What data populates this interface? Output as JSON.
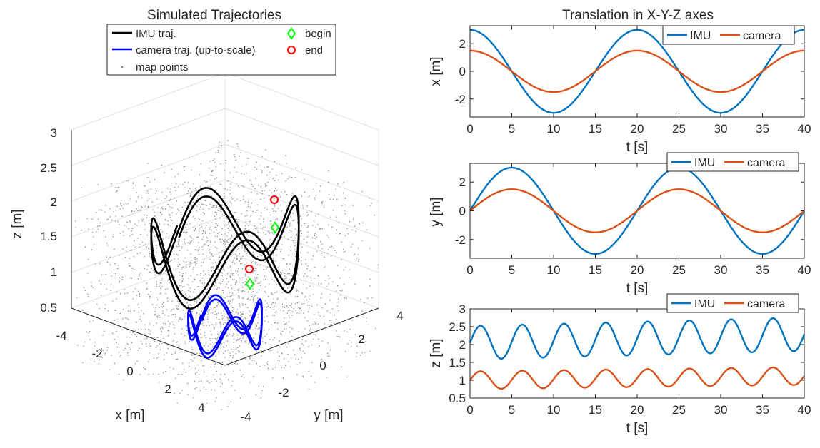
{
  "chart_data": [
    {
      "type": "scatter3d",
      "title": "Simulated Trajectories",
      "xlabel": "x [m]",
      "ylabel": "y [m]",
      "zlabel": "z [m]",
      "xlim": [
        -5,
        5
      ],
      "ylim": [
        -4,
        4
      ],
      "zlim": [
        0.5,
        3
      ],
      "xticks": [
        "-4",
        "-2",
        "0",
        "2",
        "4"
      ],
      "yticks": [
        "-4",
        "-2",
        "0",
        "2",
        "4"
      ],
      "zticks": [
        "0.5",
        "1",
        "1.5",
        "2",
        "2.5",
        "3"
      ],
      "legend": {
        "placement": "top",
        "entries": [
          {
            "label": "IMU traj.",
            "color": "#000000",
            "marker": "line"
          },
          {
            "label": "camera traj. (up-to-scale)",
            "color": "#0000ff",
            "marker": "line"
          },
          {
            "label": "map points",
            "color": "#808080",
            "marker": "dot"
          },
          {
            "label": "begin",
            "color": "#00ff00",
            "marker": "diamond"
          },
          {
            "label": "end",
            "color": "#ff0000",
            "marker": "circle"
          }
        ]
      },
      "series": [
        {
          "name": "IMU traj.",
          "color": "#000000",
          "x": "3cos(2πt/20)",
          "y": "3sin(2πt/20)",
          "z": "2.2+0.45sin(2πt/5), rising to ~2.8"
        },
        {
          "name": "camera traj. (up-to-scale)",
          "color": "#0000ff",
          "x": "1.5cos(2πt/20)",
          "y": "1.5sin(2πt/20)",
          "z": "1.0+0.25sin(2πt/5)"
        }
      ],
      "points": [
        {
          "name": "IMU begin",
          "x": 3,
          "y": 0,
          "z": 2.0,
          "marker": "begin"
        },
        {
          "name": "IMU end",
          "x": 3,
          "y": 0,
          "z": 2.4,
          "marker": "end"
        },
        {
          "name": "camera begin",
          "x": 1.5,
          "y": 0,
          "z": 1.0,
          "marker": "begin"
        },
        {
          "name": "camera end",
          "x": 1.5,
          "y": 0,
          "z": 1.2,
          "marker": "end"
        }
      ]
    },
    {
      "type": "line",
      "title": "Translation in X-Y-Z axes",
      "xlabel": "t [s]",
      "ylabel": "x [m]",
      "xlim": [
        0,
        40
      ],
      "ylim": [
        -3.3,
        3.3
      ],
      "xticks": [
        0,
        5,
        10,
        15,
        20,
        25,
        30,
        35,
        40
      ],
      "yticks": [
        -2,
        0,
        2
      ],
      "legend": {
        "placement": "top-right",
        "orientation": "horizontal"
      },
      "series": [
        {
          "name": "IMU",
          "color": "#0072bd",
          "amplitude": 3,
          "period": 20,
          "phase": "cos",
          "offset": 0,
          "trend": 0
        },
        {
          "name": "camera",
          "color": "#d95319",
          "amplitude": 1.5,
          "period": 20,
          "phase": "cos",
          "offset": 0,
          "trend": 0
        }
      ]
    },
    {
      "type": "line",
      "title": "",
      "xlabel": "t [s]",
      "ylabel": "y [m]",
      "xlim": [
        0,
        40
      ],
      "ylim": [
        -3.3,
        3.3
      ],
      "xticks": [
        0,
        5,
        10,
        15,
        20,
        25,
        30,
        35,
        40
      ],
      "yticks": [
        -2,
        0,
        2
      ],
      "legend": {
        "placement": "top-right",
        "orientation": "horizontal"
      },
      "series": [
        {
          "name": "IMU",
          "color": "#0072bd",
          "amplitude": 3,
          "period": 20,
          "phase": "sin",
          "offset": 0,
          "trend": 0
        },
        {
          "name": "camera",
          "color": "#d95319",
          "amplitude": 1.5,
          "period": 20,
          "phase": "sin",
          "offset": 0,
          "trend": 0
        }
      ]
    },
    {
      "type": "line",
      "title": "",
      "xlabel": "t [s]",
      "ylabel": "z [m]",
      "xlim": [
        0,
        40
      ],
      "ylim": [
        0.5,
        3
      ],
      "xticks": [
        0,
        5,
        10,
        15,
        20,
        25,
        30,
        35,
        40
      ],
      "yticks": [
        0.5,
        1,
        1.5,
        2,
        2.5,
        3
      ],
      "legend": {
        "placement": "top-right",
        "orientation": "horizontal"
      },
      "series": [
        {
          "name": "IMU",
          "color": "#0072bd",
          "amplitude": 0.47,
          "period": 5,
          "phase": "sin",
          "offset": 2.05,
          "trend": 0.006
        },
        {
          "name": "camera",
          "color": "#d95319",
          "amplitude": 0.25,
          "period": 5,
          "phase": "sin",
          "offset": 1.0,
          "trend": 0.003
        }
      ]
    }
  ]
}
